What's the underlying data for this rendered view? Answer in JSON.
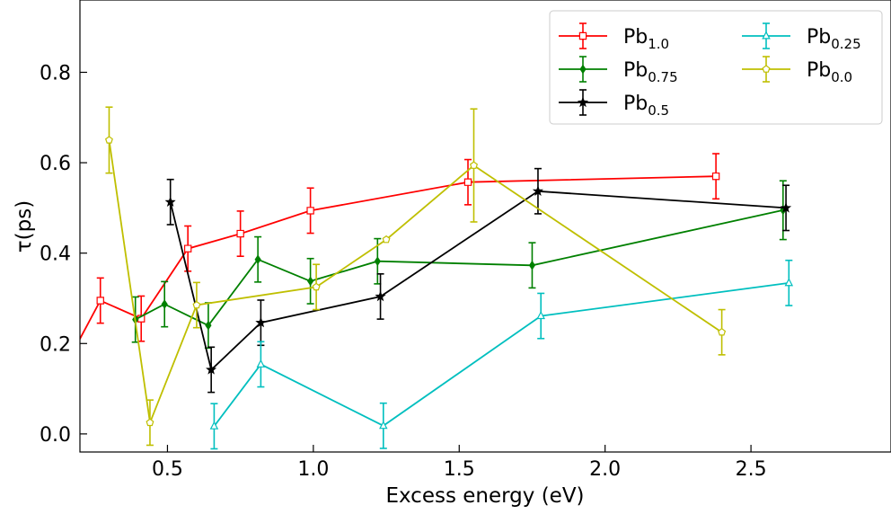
{
  "chart_data": {
    "type": "line",
    "xlabel": "Excess energy (eV)",
    "ylabel": "τ(ps)",
    "xlim": [
      0.2,
      2.98
    ],
    "ylim": [
      -0.04,
      0.96
    ],
    "xticks": [
      0.5,
      1.0,
      1.5,
      2.0,
      2.5
    ],
    "xtick_labels": [
      "0.5",
      "1.0",
      "1.5",
      "2.0",
      "2.5"
    ],
    "yticks": [
      0.0,
      0.2,
      0.4,
      0.6,
      0.8
    ],
    "ytick_labels": [
      "0.0",
      "0.2",
      "0.4",
      "0.6",
      "0.8"
    ],
    "legend_position": "top-right",
    "legend_columns": 2,
    "grid": false,
    "series": [
      {
        "name_base": "Pb",
        "name_sub": "1.0",
        "color": "#ff0000",
        "marker": "square",
        "x": [
          0.15,
          0.27,
          0.41,
          0.57,
          0.75,
          0.99,
          1.53,
          2.38
        ],
        "y": [
          0.15,
          0.295,
          0.255,
          0.41,
          0.443,
          0.494,
          0.557,
          0.57
        ],
        "err": [
          0.05,
          0.05,
          0.05,
          0.05,
          0.05,
          0.05,
          0.05,
          0.05
        ]
      },
      {
        "name_base": "Pb",
        "name_sub": "0.75",
        "color": "#008000",
        "marker": "diamond",
        "x": [
          0.39,
          0.49,
          0.64,
          0.81,
          0.99,
          1.22,
          1.75,
          2.61
        ],
        "y": [
          0.253,
          0.287,
          0.24,
          0.386,
          0.338,
          0.382,
          0.373,
          0.495
        ],
        "err": [
          0.05,
          0.05,
          0.05,
          0.05,
          0.05,
          0.05,
          0.05,
          0.065
        ]
      },
      {
        "name_base": "Pb",
        "name_sub": "0.5",
        "color": "#000000",
        "marker": "star",
        "x": [
          0.51,
          0.65,
          0.82,
          1.23,
          1.77,
          2.62
        ],
        "y": [
          0.513,
          0.142,
          0.246,
          0.304,
          0.537,
          0.5
        ],
        "err": [
          0.05,
          0.05,
          0.05,
          0.05,
          0.05,
          0.05
        ]
      },
      {
        "name_base": "Pb",
        "name_sub": "0.25",
        "color": "#00bfbf",
        "marker": "triangle",
        "x": [
          0.66,
          0.82,
          1.24,
          1.78,
          2.63
        ],
        "y": [
          0.017,
          0.154,
          0.018,
          0.261,
          0.334
        ],
        "err": [
          0.05,
          0.05,
          0.05,
          0.05,
          0.05
        ]
      },
      {
        "name_base": "Pb",
        "name_sub": "0.0",
        "color": "#bfbf00",
        "marker": "pentagon",
        "x": [
          0.3,
          0.44,
          0.6,
          1.01,
          1.25,
          1.55,
          2.4
        ],
        "y": [
          0.65,
          0.025,
          0.285,
          0.325,
          0.43,
          0.594,
          0.225
        ],
        "err": [
          0.073,
          0.05,
          0.05,
          0.05,
          0.0,
          0.125,
          0.05
        ]
      }
    ]
  }
}
